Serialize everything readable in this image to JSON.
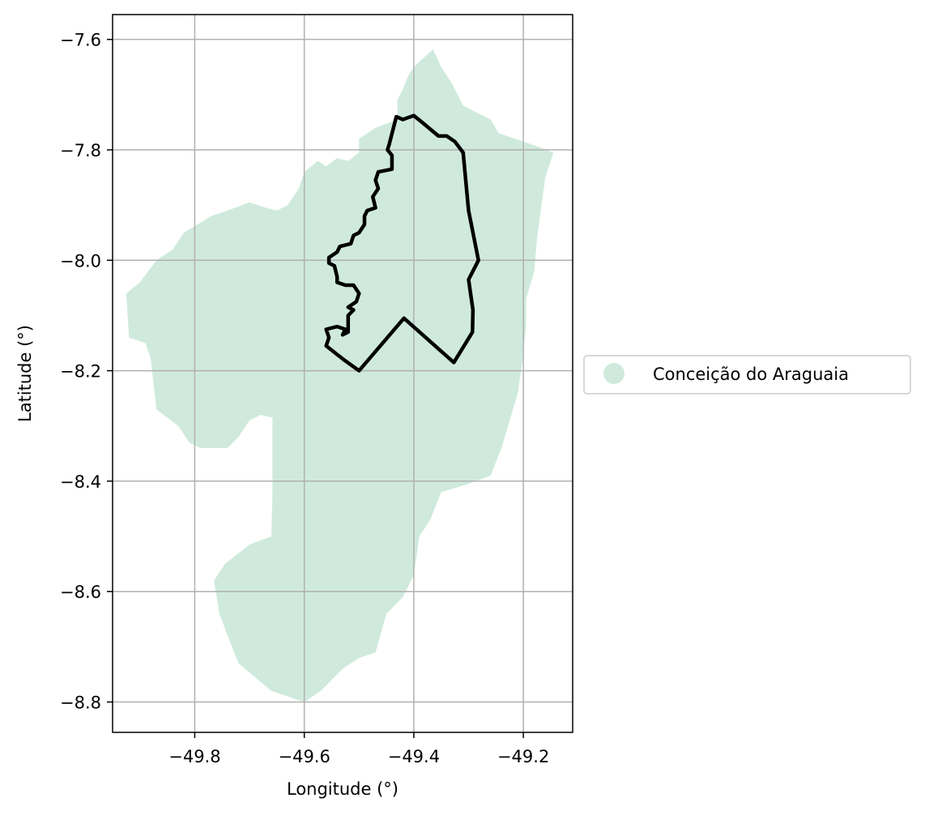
{
  "chart_data": {
    "type": "map",
    "xlabel": "Longitude (°)",
    "ylabel": "Latitude (°)",
    "xlim": [
      -49.95,
      -49.11
    ],
    "ylim": [
      -8.855,
      -7.555
    ],
    "xticks": [
      -49.8,
      -49.6,
      -49.4,
      -49.2
    ],
    "yticks": [
      -7.6,
      -7.8,
      -8.0,
      -8.2,
      -8.4,
      -8.6,
      -8.8
    ],
    "xtick_labels": [
      "−49.8",
      "−49.6",
      "−49.4",
      "−49.2"
    ],
    "ytick_labels": [
      "−7.6",
      "−7.8",
      "−8.0",
      "−8.2",
      "−8.4",
      "−8.6",
      "−8.8"
    ],
    "grid": true,
    "legend": {
      "placement": "right",
      "entries": [
        {
          "label": "Conceição do Araguaia",
          "color": "#cfeadd"
        }
      ]
    },
    "colors": {
      "region_fill": "#cfeadd",
      "boundary": "#000000",
      "grid": "#b0b0b0"
    },
    "region": [
      [
        -49.365,
        -7.618
      ],
      [
        -49.35,
        -7.65
      ],
      [
        -49.33,
        -7.68
      ],
      [
        -49.31,
        -7.72
      ],
      [
        -49.26,
        -7.745
      ],
      [
        -49.245,
        -7.77
      ],
      [
        -49.17,
        -7.795
      ],
      [
        -49.145,
        -7.805
      ],
      [
        -49.16,
        -7.85
      ],
      [
        -49.175,
        -7.96
      ],
      [
        -49.18,
        -8.02
      ],
      [
        -49.195,
        -8.07
      ],
      [
        -49.195,
        -8.12
      ],
      [
        -49.2,
        -8.17
      ],
      [
        -49.21,
        -8.24
      ],
      [
        -49.24,
        -8.34
      ],
      [
        -49.26,
        -8.39
      ],
      [
        -49.3,
        -8.405
      ],
      [
        -49.35,
        -8.42
      ],
      [
        -49.37,
        -8.47
      ],
      [
        -49.39,
        -8.5
      ],
      [
        -49.4,
        -8.57
      ],
      [
        -49.42,
        -8.61
      ],
      [
        -49.45,
        -8.64
      ],
      [
        -49.47,
        -8.71
      ],
      [
        -49.5,
        -8.72
      ],
      [
        -49.53,
        -8.74
      ],
      [
        -49.57,
        -8.78
      ],
      [
        -49.6,
        -8.8
      ],
      [
        -49.63,
        -8.79
      ],
      [
        -49.66,
        -8.78
      ],
      [
        -49.72,
        -8.73
      ],
      [
        -49.74,
        -8.68
      ],
      [
        -49.755,
        -8.64
      ],
      [
        -49.765,
        -8.58
      ],
      [
        -49.745,
        -8.55
      ],
      [
        -49.7,
        -8.515
      ],
      [
        -49.66,
        -8.5
      ],
      [
        -49.658,
        -8.42
      ],
      [
        -49.658,
        -8.285
      ],
      [
        -49.68,
        -8.28
      ],
      [
        -49.7,
        -8.29
      ],
      [
        -49.72,
        -8.32
      ],
      [
        -49.74,
        -8.34
      ],
      [
        -49.79,
        -8.34
      ],
      [
        -49.81,
        -8.33
      ],
      [
        -49.83,
        -8.3
      ],
      [
        -49.87,
        -8.27
      ],
      [
        -49.88,
        -8.18
      ],
      [
        -49.89,
        -8.15
      ],
      [
        -49.92,
        -8.14
      ],
      [
        -49.925,
        -8.06
      ],
      [
        -49.9,
        -8.04
      ],
      [
        -49.87,
        -8.0
      ],
      [
        -49.84,
        -7.98
      ],
      [
        -49.82,
        -7.95
      ],
      [
        -49.77,
        -7.92
      ],
      [
        -49.74,
        -7.91
      ],
      [
        -49.7,
        -7.895
      ],
      [
        -49.67,
        -7.905
      ],
      [
        -49.65,
        -7.91
      ],
      [
        -49.63,
        -7.9
      ],
      [
        -49.61,
        -7.87
      ],
      [
        -49.6,
        -7.84
      ],
      [
        -49.575,
        -7.82
      ],
      [
        -49.56,
        -7.83
      ],
      [
        -49.54,
        -7.815
      ],
      [
        -49.52,
        -7.82
      ],
      [
        -49.5,
        -7.805
      ],
      [
        -49.5,
        -7.78
      ],
      [
        -49.47,
        -7.76
      ],
      [
        -49.43,
        -7.745
      ],
      [
        -49.43,
        -7.71
      ],
      [
        -49.42,
        -7.69
      ],
      [
        -49.41,
        -7.665
      ],
      [
        -49.395,
        -7.645
      ]
    ],
    "boundary": [
      [
        -49.432,
        -7.74
      ],
      [
        -49.42,
        -7.745
      ],
      [
        -49.4,
        -7.738
      ],
      [
        -49.385,
        -7.75
      ],
      [
        -49.355,
        -7.775
      ],
      [
        -49.34,
        -7.775
      ],
      [
        -49.325,
        -7.785
      ],
      [
        -49.31,
        -7.805
      ],
      [
        -49.3,
        -7.91
      ],
      [
        -49.282,
        -8.0
      ],
      [
        -49.3,
        -8.035
      ],
      [
        -49.292,
        -8.09
      ],
      [
        -49.293,
        -8.13
      ],
      [
        -49.327,
        -8.185
      ],
      [
        -49.418,
        -8.105
      ],
      [
        -49.5,
        -8.2
      ],
      [
        -49.528,
        -8.18
      ],
      [
        -49.56,
        -8.155
      ],
      [
        -49.555,
        -8.14
      ],
      [
        -49.56,
        -8.125
      ],
      [
        -49.54,
        -8.12
      ],
      [
        -49.525,
        -8.125
      ],
      [
        -49.53,
        -8.135
      ],
      [
        -49.52,
        -8.13
      ],
      [
        -49.52,
        -8.1
      ],
      [
        -49.51,
        -8.09
      ],
      [
        -49.52,
        -8.085
      ],
      [
        -49.505,
        -8.075
      ],
      [
        -49.5,
        -8.06
      ],
      [
        -49.51,
        -8.045
      ],
      [
        -49.525,
        -8.045
      ],
      [
        -49.54,
        -8.04
      ],
      [
        -49.54,
        -8.03
      ],
      [
        -49.545,
        -8.01
      ],
      [
        -49.555,
        -8.005
      ],
      [
        -49.555,
        -7.995
      ],
      [
        -49.54,
        -7.985
      ],
      [
        -49.535,
        -7.975
      ],
      [
        -49.515,
        -7.97
      ],
      [
        -49.51,
        -7.955
      ],
      [
        -49.5,
        -7.95
      ],
      [
        -49.49,
        -7.935
      ],
      [
        -49.49,
        -7.92
      ],
      [
        -49.485,
        -7.91
      ],
      [
        -49.47,
        -7.905
      ],
      [
        -49.475,
        -7.885
      ],
      [
        -49.465,
        -7.87
      ],
      [
        -49.47,
        -7.855
      ],
      [
        -49.465,
        -7.84
      ],
      [
        -49.44,
        -7.835
      ],
      [
        -49.44,
        -7.81
      ],
      [
        -49.448,
        -7.8
      ],
      [
        -49.445,
        -7.79
      ],
      [
        -49.432,
        -7.74
      ]
    ]
  }
}
